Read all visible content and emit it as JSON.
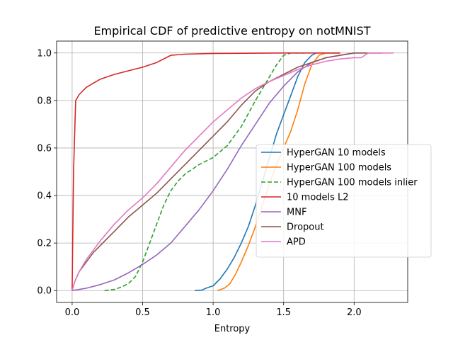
{
  "chart_data": {
    "type": "line",
    "title": "Empirical CDF of predictive entropy on notMNIST",
    "xlabel": "Entropy",
    "ylabel": "",
    "xlim": [
      -0.11,
      2.38
    ],
    "ylim": [
      -0.05,
      1.05
    ],
    "xticks": [
      "0.0",
      "0.5",
      "1.0",
      "1.5",
      "2.0"
    ],
    "yticks": [
      "0.0",
      "0.2",
      "0.4",
      "0.6",
      "0.8",
      "1.0"
    ],
    "grid": true,
    "legend_position": "right",
    "series": [
      {
        "name": "HyperGAN 10 models",
        "color": "#1f77b4",
        "dash": "solid",
        "points": [
          [
            0.87,
            0.0
          ],
          [
            0.92,
            0.002
          ],
          [
            0.95,
            0.01
          ],
          [
            1.0,
            0.02
          ],
          [
            1.05,
            0.05
          ],
          [
            1.1,
            0.09
          ],
          [
            1.15,
            0.14
          ],
          [
            1.2,
            0.2
          ],
          [
            1.25,
            0.27
          ],
          [
            1.3,
            0.36
          ],
          [
            1.35,
            0.46
          ],
          [
            1.4,
            0.56
          ],
          [
            1.45,
            0.66
          ],
          [
            1.5,
            0.74
          ],
          [
            1.55,
            0.82
          ],
          [
            1.6,
            0.9
          ],
          [
            1.65,
            0.96
          ],
          [
            1.7,
            0.99
          ],
          [
            1.73,
            1.0
          ],
          [
            1.9,
            1.0
          ]
        ]
      },
      {
        "name": "HyperGAN 100 models",
        "color": "#ff7f0e",
        "dash": "solid",
        "points": [
          [
            1.03,
            0.0
          ],
          [
            1.08,
            0.01
          ],
          [
            1.12,
            0.03
          ],
          [
            1.16,
            0.07
          ],
          [
            1.2,
            0.12
          ],
          [
            1.25,
            0.19
          ],
          [
            1.3,
            0.27
          ],
          [
            1.35,
            0.36
          ],
          [
            1.4,
            0.45
          ],
          [
            1.45,
            0.53
          ],
          [
            1.5,
            0.6
          ],
          [
            1.55,
            0.67
          ],
          [
            1.6,
            0.76
          ],
          [
            1.65,
            0.87
          ],
          [
            1.7,
            0.95
          ],
          [
            1.75,
            0.99
          ],
          [
            1.8,
            1.0
          ],
          [
            1.9,
            1.0
          ]
        ]
      },
      {
        "name": "HyperGAN 100 models inlier",
        "color": "#2ca02c",
        "dash": "dashed",
        "points": [
          [
            0.23,
            0.0
          ],
          [
            0.3,
            0.005
          ],
          [
            0.35,
            0.015
          ],
          [
            0.4,
            0.03
          ],
          [
            0.45,
            0.06
          ],
          [
            0.5,
            0.12
          ],
          [
            0.55,
            0.2
          ],
          [
            0.6,
            0.28
          ],
          [
            0.65,
            0.36
          ],
          [
            0.7,
            0.42
          ],
          [
            0.75,
            0.46
          ],
          [
            0.8,
            0.49
          ],
          [
            0.9,
            0.53
          ],
          [
            1.0,
            0.56
          ],
          [
            1.1,
            0.61
          ],
          [
            1.2,
            0.69
          ],
          [
            1.3,
            0.8
          ],
          [
            1.4,
            0.9
          ],
          [
            1.45,
            0.95
          ],
          [
            1.5,
            0.99
          ],
          [
            1.55,
            1.0
          ],
          [
            1.65,
            1.0
          ]
        ]
      },
      {
        "name": "10 models L2",
        "color": "#d62728",
        "dash": "solid",
        "points": [
          [
            0.0,
            0.0
          ],
          [
            0.01,
            0.5
          ],
          [
            0.025,
            0.8
          ],
          [
            0.05,
            0.825
          ],
          [
            0.1,
            0.855
          ],
          [
            0.2,
            0.89
          ],
          [
            0.3,
            0.91
          ],
          [
            0.4,
            0.925
          ],
          [
            0.5,
            0.94
          ],
          [
            0.6,
            0.96
          ],
          [
            0.7,
            0.99
          ],
          [
            0.8,
            0.995
          ],
          [
            1.0,
            0.998
          ],
          [
            1.5,
            1.0
          ],
          [
            1.9,
            1.0
          ]
        ]
      },
      {
        "name": "MNF",
        "color": "#9467bd",
        "dash": "solid",
        "points": [
          [
            0.0,
            0.0
          ],
          [
            0.05,
            0.005
          ],
          [
            0.1,
            0.01
          ],
          [
            0.2,
            0.025
          ],
          [
            0.3,
            0.045
          ],
          [
            0.4,
            0.075
          ],
          [
            0.5,
            0.11
          ],
          [
            0.6,
            0.15
          ],
          [
            0.7,
            0.2
          ],
          [
            0.8,
            0.27
          ],
          [
            0.9,
            0.34
          ],
          [
            1.0,
            0.42
          ],
          [
            1.1,
            0.51
          ],
          [
            1.2,
            0.61
          ],
          [
            1.3,
            0.7
          ],
          [
            1.4,
            0.79
          ],
          [
            1.5,
            0.86
          ],
          [
            1.6,
            0.92
          ],
          [
            1.7,
            0.96
          ],
          [
            1.8,
            0.98
          ],
          [
            1.9,
            0.99
          ],
          [
            2.0,
            1.0
          ],
          [
            2.2,
            1.0
          ]
        ]
      },
      {
        "name": "Dropout",
        "color": "#8c564b",
        "dash": "solid",
        "points": [
          [
            0.0,
            0.0
          ],
          [
            0.02,
            0.04
          ],
          [
            0.05,
            0.08
          ],
          [
            0.1,
            0.12
          ],
          [
            0.15,
            0.16
          ],
          [
            0.2,
            0.19
          ],
          [
            0.3,
            0.25
          ],
          [
            0.4,
            0.31
          ],
          [
            0.5,
            0.36
          ],
          [
            0.6,
            0.41
          ],
          [
            0.7,
            0.47
          ],
          [
            0.8,
            0.53
          ],
          [
            0.9,
            0.59
          ],
          [
            1.0,
            0.65
          ],
          [
            1.1,
            0.71
          ],
          [
            1.2,
            0.78
          ],
          [
            1.3,
            0.84
          ],
          [
            1.4,
            0.88
          ],
          [
            1.5,
            0.91
          ],
          [
            1.6,
            0.94
          ],
          [
            1.7,
            0.96
          ],
          [
            1.8,
            0.98
          ],
          [
            1.9,
            0.99
          ],
          [
            2.0,
            1.0
          ],
          [
            2.2,
            1.0
          ]
        ]
      },
      {
        "name": "APD",
        "color": "#e377c2",
        "dash": "solid",
        "points": [
          [
            0.0,
            0.0
          ],
          [
            0.02,
            0.04
          ],
          [
            0.05,
            0.08
          ],
          [
            0.1,
            0.13
          ],
          [
            0.15,
            0.17
          ],
          [
            0.2,
            0.21
          ],
          [
            0.3,
            0.28
          ],
          [
            0.4,
            0.34
          ],
          [
            0.5,
            0.39
          ],
          [
            0.6,
            0.45
          ],
          [
            0.7,
            0.52
          ],
          [
            0.8,
            0.59
          ],
          [
            0.9,
            0.65
          ],
          [
            1.0,
            0.71
          ],
          [
            1.1,
            0.76
          ],
          [
            1.2,
            0.81
          ],
          [
            1.3,
            0.85
          ],
          [
            1.4,
            0.88
          ],
          [
            1.5,
            0.905
          ],
          [
            1.6,
            0.93
          ],
          [
            1.7,
            0.95
          ],
          [
            1.8,
            0.965
          ],
          [
            1.9,
            0.975
          ],
          [
            2.0,
            0.98
          ],
          [
            2.05,
            0.98
          ],
          [
            2.1,
            1.0
          ],
          [
            2.28,
            1.0
          ]
        ]
      }
    ]
  }
}
